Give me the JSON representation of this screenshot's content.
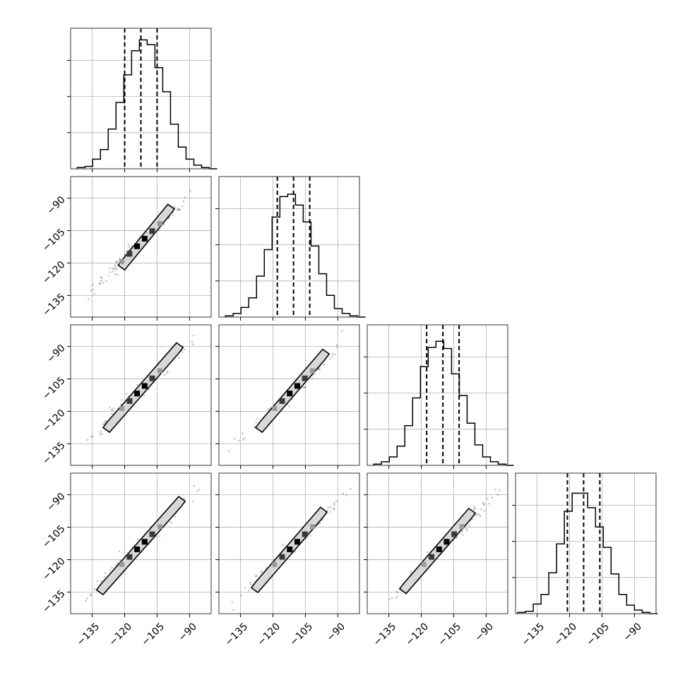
{
  "chart_data": {
    "type": "corner",
    "n_parameters": 4,
    "axis_range": [
      -145,
      -80
    ],
    "tick_values": [
      -135,
      -120,
      -105,
      -90
    ],
    "tick_labels": [
      "−135",
      "−120",
      "−105",
      "−90"
    ],
    "grid": true,
    "title": "",
    "parameter_labels": [
      "",
      "",
      "",
      ""
    ],
    "quantile_lines": [
      {
        "param": 1,
        "values": [
          -120.0,
          -112.5,
          -105.0
        ]
      },
      {
        "param": 2,
        "values": [
          -118.0,
          -110.5,
          -103.0
        ]
      },
      {
        "param": 3,
        "values": [
          -117.5,
          -110.0,
          -102.5
        ]
      },
      {
        "param": 4,
        "values": [
          -121.0,
          -113.5,
          -106.0
        ]
      }
    ],
    "histograms": [
      {
        "param": 1,
        "counts": [
          0.01,
          0.02,
          0.08,
          0.16,
          0.33,
          0.55,
          0.78,
          0.98,
          1.07,
          1.03,
          0.84,
          0.64,
          0.37,
          0.18,
          0.08,
          0.03,
          0.01,
          0.0
        ],
        "bin_start": -142,
        "bin_width": 3.6
      },
      {
        "param": 2,
        "counts": [
          0.01,
          0.03,
          0.08,
          0.16,
          0.34,
          0.56,
          0.83,
          1.0,
          1.02,
          0.93,
          0.79,
          0.59,
          0.36,
          0.18,
          0.07,
          0.03,
          0.01,
          0.0
        ],
        "bin_start": -142,
        "bin_width": 3.6
      },
      {
        "param": 3,
        "counts": [
          0.01,
          0.03,
          0.07,
          0.16,
          0.33,
          0.56,
          0.82,
          0.98,
          1.03,
          0.97,
          0.76,
          0.58,
          0.35,
          0.17,
          0.07,
          0.03,
          0.01,
          0.0
        ],
        "bin_start": -142,
        "bin_width": 3.6
      },
      {
        "param": 4,
        "counts": [
          0.01,
          0.02,
          0.08,
          0.16,
          0.34,
          0.58,
          0.85,
          1.0,
          1.0,
          0.88,
          0.72,
          0.55,
          0.33,
          0.16,
          0.07,
          0.03,
          0.01,
          0.0
        ],
        "bin_start": -144,
        "bin_width": 3.6
      }
    ],
    "scatter_panels": [
      {
        "row": 2,
        "col": 1,
        "center": [
          -112.5,
          -110.5
        ],
        "contour_extent": [
          -123,
          -97
        ]
      },
      {
        "row": 3,
        "col": 1,
        "center": [
          -112.5,
          -110.0
        ],
        "contour_extent": [
          -130,
          -93
        ]
      },
      {
        "row": 3,
        "col": 2,
        "center": [
          -110.5,
          -110.0
        ],
        "contour_extent": [
          -128,
          -94
        ]
      },
      {
        "row": 4,
        "col": 1,
        "center": [
          -112.5,
          -113.5
        ],
        "contour_extent": [
          -133,
          -92
        ]
      },
      {
        "row": 4,
        "col": 2,
        "center": [
          -110.5,
          -113.5
        ],
        "contour_extent": [
          -130,
          -95
        ]
      },
      {
        "row": 4,
        "col": 3,
        "center": [
          -110.0,
          -113.5
        ],
        "contour_extent": [
          -130,
          -95
        ]
      }
    ],
    "colors": {
      "ink": "#000000",
      "grid": "#b0b0b0",
      "density_light": "#9a9a9a",
      "density_dark": "#000000"
    }
  }
}
